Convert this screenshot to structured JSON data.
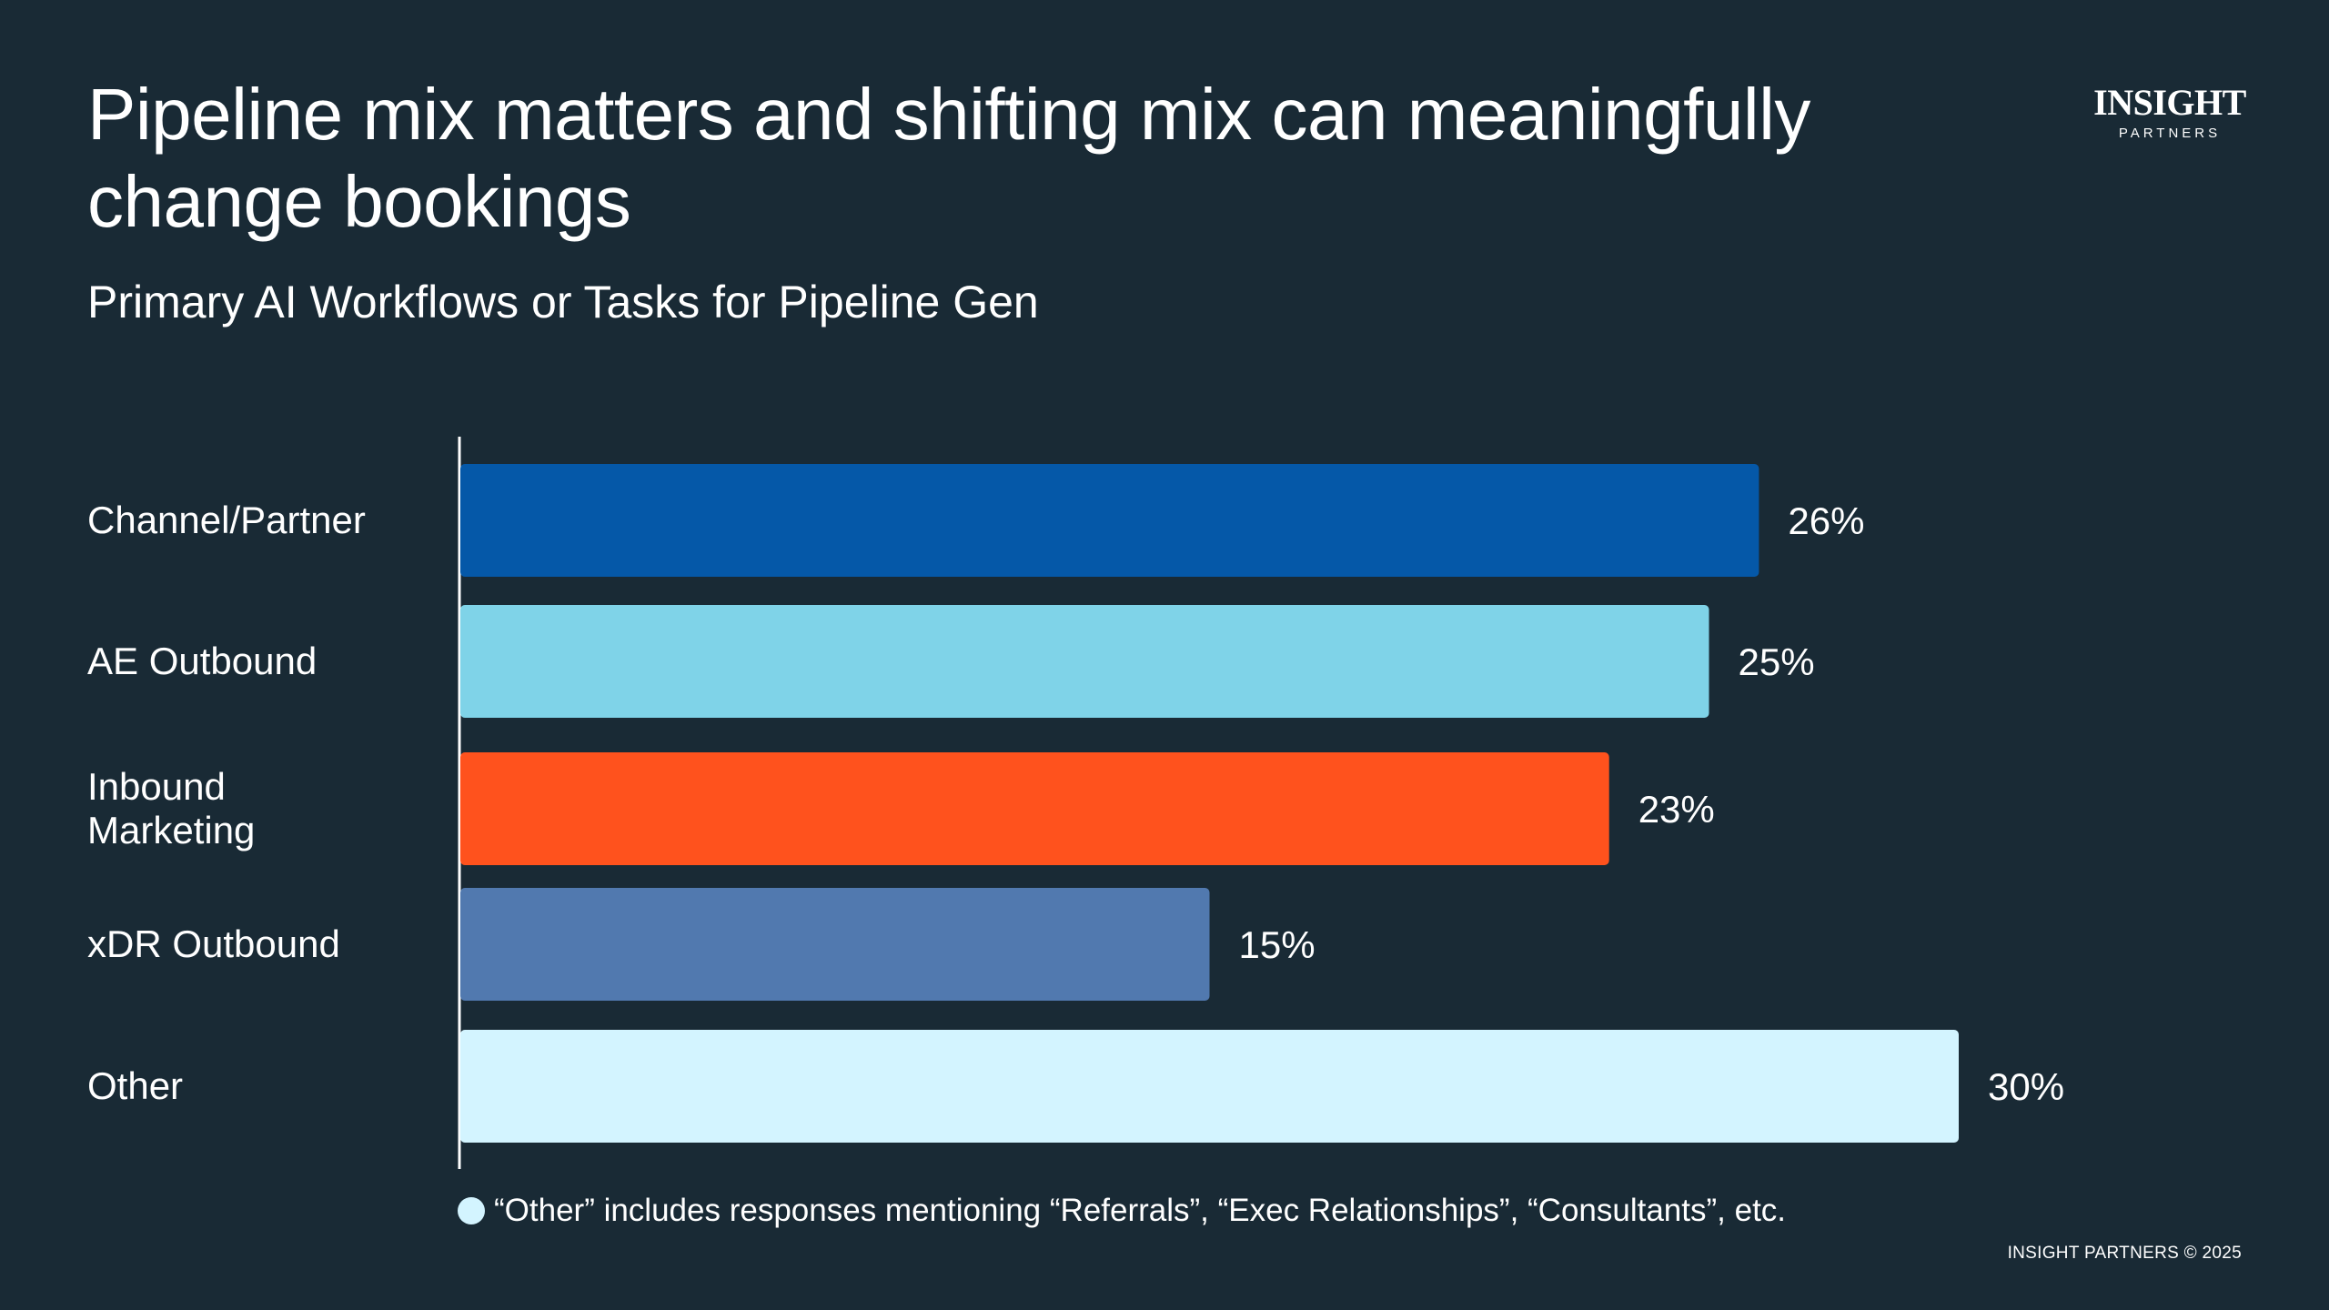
{
  "header": {
    "title": "Pipeline mix matters and shifting mix  can meaningfully\nchange bookings",
    "subtitle": "Primary AI Workflows or Tasks for Pipeline Gen"
  },
  "logo": {
    "main": "INSIGHT",
    "sub": "PARTNERS"
  },
  "chart_data": {
    "type": "bar",
    "orientation": "horizontal",
    "title": "Primary AI Workflows or Tasks for Pipeline Gen",
    "categories": [
      "Channel/Partner",
      "AE Outbound",
      "Inbound\nMarketing",
      "xDR Outbound",
      "Other"
    ],
    "values": [
      26,
      25,
      23,
      15,
      30
    ],
    "value_labels": [
      "26%",
      "25%",
      "23%",
      "15%",
      "30%"
    ],
    "colors": [
      "#0558a8",
      "#7fd3e8",
      "#ff521d",
      "#5179af",
      "#d3f4ff"
    ],
    "xlabel": "",
    "ylabel": "",
    "xlim": [
      0,
      30
    ],
    "grid": false,
    "legend": "none"
  },
  "footnote": "“Other” includes responses mentioning “Referrals”, “Exec Relationships”, “Consultants”, etc.",
  "copyright": "INSIGHT PARTNERS © 2025"
}
